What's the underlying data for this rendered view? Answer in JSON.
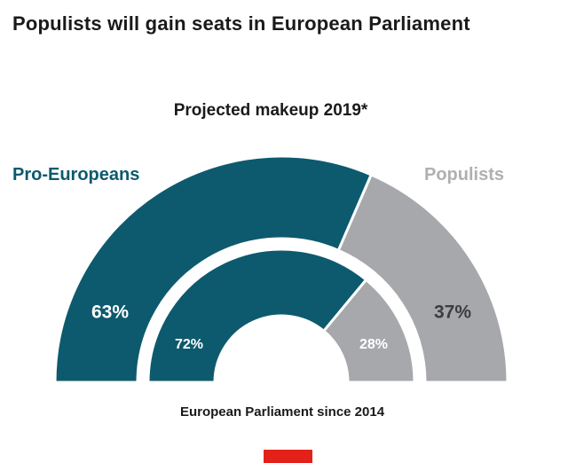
{
  "header": {
    "title": "Populists will gain seats in European Parliament"
  },
  "chart": {
    "subtitle": "Projected makeup 2019*",
    "left_label": "Pro-Europeans",
    "right_label": "Populists",
    "caption": "European Parliament since 2014",
    "left_label_color": "#0d5a6e",
    "right_label_color": "#aeb0b2"
  },
  "chart_data": {
    "type": "pie",
    "variant": "half-donut-double-ring",
    "title": "Populists will gain seats in European Parliament",
    "unit": "percent",
    "rings": [
      {
        "name": "Projected makeup 2019*",
        "position": "outer",
        "segments": [
          {
            "label": "Pro-Europeans",
            "value": 63,
            "display": "63%",
            "color": "#0d5a6e",
            "display_color": "#ffffff"
          },
          {
            "label": "Populists",
            "value": 37,
            "display": "37%",
            "color": "#a6a8ab",
            "display_color": "#3d3d3d"
          }
        ]
      },
      {
        "name": "European Parliament since 2014",
        "position": "inner",
        "segments": [
          {
            "label": "Pro-Europeans",
            "value": 72,
            "display": "72%",
            "color": "#0d5a6e",
            "display_color": "#ffffff"
          },
          {
            "label": "Populists",
            "value": 28,
            "display": "28%",
            "color": "#a6a8ab",
            "display_color": "#ffffff"
          }
        ]
      }
    ]
  },
  "footer": {
    "logo_color": "#e32119"
  }
}
